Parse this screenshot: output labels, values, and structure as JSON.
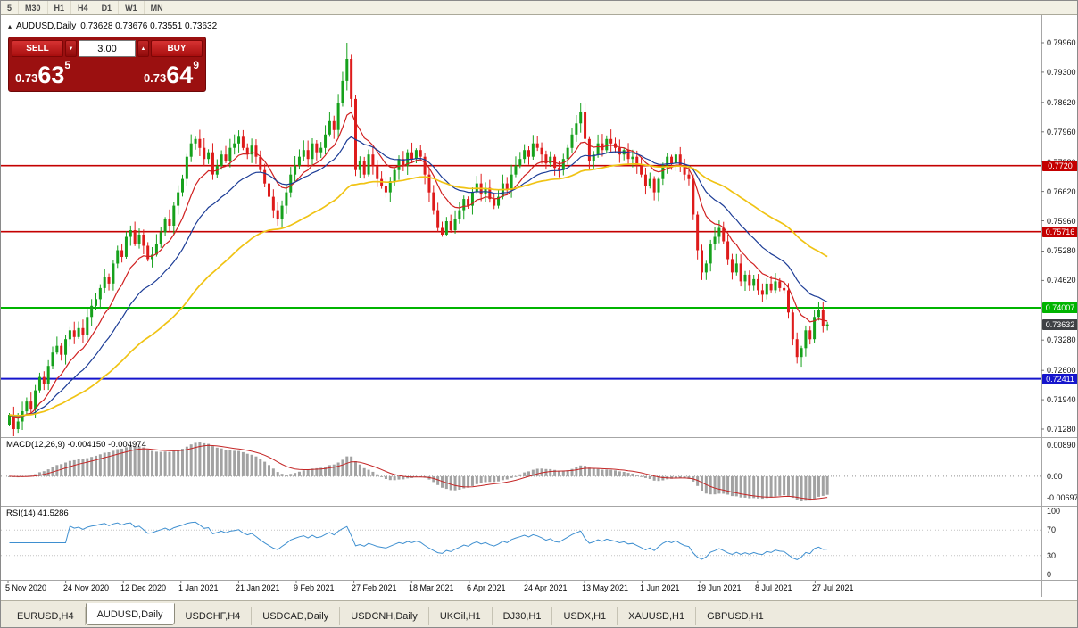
{
  "window": {
    "title": "AUDUSD,Daily"
  },
  "toolbar": {
    "buttons": [
      "5",
      "M30",
      "H1",
      "H4",
      "D1",
      "W1",
      "MN"
    ]
  },
  "chart_header": {
    "collapse_icon": "▴",
    "symbol": "AUDUSD,Daily",
    "ohlc": "0.73628 0.73676 0.73551 0.73632"
  },
  "trade_panel": {
    "sell_label": "SELL",
    "buy_label": "BUY",
    "volume": "3.00",
    "volume_down_icon": "▼",
    "volume_up_icon": "▲",
    "sell_price": {
      "prefix": "0.73",
      "big": "63",
      "sup": "5"
    },
    "buy_price": {
      "prefix": "0.73",
      "big": "64",
      "sup": "9"
    }
  },
  "price_scale": {
    "ticks": [
      "0.79960",
      "0.79300",
      "0.78620",
      "0.77960",
      "0.77280",
      "0.76620",
      "0.75960",
      "0.75280",
      "0.74620",
      "0.73960",
      "0.73280",
      "0.72600",
      "0.71940",
      "0.71280"
    ],
    "badges": [
      {
        "text": "0.7720",
        "price": 0.772,
        "color": "#C40000"
      },
      {
        "text": "0.75716",
        "price": 0.75716,
        "color": "#C40000"
      },
      {
        "text": "0.74007",
        "price": 0.74007,
        "color": "#00B400"
      },
      {
        "text": "0.73632",
        "price": 0.73632,
        "color": "#3F4145"
      },
      {
        "text": "0.72411",
        "price": 0.72411,
        "color": "#1515CC"
      }
    ]
  },
  "macd_panel": {
    "label": "MACD(12,26,9)",
    "values": "-0.004150 -0.004974",
    "scale_top": "0.00890",
    "scale_zero": "0.00",
    "scale_bottom": "-0.00697"
  },
  "rsi_panel": {
    "label": "RSI(14)",
    "value": "41.5286",
    "scale": [
      "100",
      "70",
      "30",
      "0"
    ],
    "scale_values": [
      100,
      70,
      30,
      0
    ]
  },
  "x_axis": {
    "dates": [
      "5 Nov 2020",
      "24 Nov 2020",
      "12 Dec 2020",
      "1 Jan 2021",
      "21 Jan 2021",
      "9 Feb 2021",
      "27 Feb 2021",
      "18 Mar 2021",
      "6 Apr 2021",
      "24 Apr 2021",
      "13 May 2021",
      "1 Jun 2021",
      "19 Jun 2021",
      "8 Jul 2021",
      "27 Jul 2021"
    ]
  },
  "tabs": [
    {
      "label": "EURUSD,H4",
      "active": false
    },
    {
      "label": "AUDUSD,Daily",
      "active": true
    },
    {
      "label": "USDCHF,H4",
      "active": false
    },
    {
      "label": "USDCAD,Daily",
      "active": false
    },
    {
      "label": "USDCNH,Daily",
      "active": false
    },
    {
      "label": "UKOil,H1",
      "active": false
    },
    {
      "label": "DJ30,H1",
      "active": false
    },
    {
      "label": "USDX,H1",
      "active": false
    },
    {
      "label": "XAUUSD,H1",
      "active": false
    },
    {
      "label": "GBPUSD,H1",
      "active": false
    }
  ],
  "chart_data": {
    "type": "candlestick",
    "symbol": "AUDUSD",
    "timeframe": "Daily",
    "ohlc_current": {
      "open": 0.73628,
      "high": 0.73676,
      "low": 0.73551,
      "close": 0.73632
    },
    "y_range": [
      0.711,
      0.8058
    ],
    "bid": 0.73632,
    "closes": [
      0.716,
      0.7128,
      0.7145,
      0.7168,
      0.719,
      0.7172,
      0.7215,
      0.7245,
      0.723,
      0.727,
      0.73,
      0.7315,
      0.7295,
      0.733,
      0.735,
      0.7335,
      0.7355,
      0.734,
      0.738,
      0.7405,
      0.742,
      0.7445,
      0.747,
      0.7455,
      0.75,
      0.753,
      0.7515,
      0.756,
      0.7575,
      0.7545,
      0.7565,
      0.754,
      0.751,
      0.752,
      0.7545,
      0.757,
      0.76,
      0.7585,
      0.763,
      0.766,
      0.769,
      0.774,
      0.777,
      0.778,
      0.776,
      0.7735,
      0.775,
      0.77,
      0.772,
      0.7745,
      0.773,
      0.776,
      0.777,
      0.7785,
      0.776,
      0.7745,
      0.7765,
      0.774,
      0.771,
      0.768,
      0.765,
      0.762,
      0.76,
      0.763,
      0.766,
      0.77,
      0.772,
      0.774,
      0.7755,
      0.7735,
      0.777,
      0.775,
      0.776,
      0.779,
      0.782,
      0.78,
      0.786,
      0.791,
      0.796,
      0.787,
      0.771,
      0.773,
      0.77,
      0.7745,
      0.772,
      0.769,
      0.7675,
      0.766,
      0.7685,
      0.771,
      0.7735,
      0.772,
      0.775,
      0.7735,
      0.7755,
      0.774,
      0.77,
      0.766,
      0.762,
      0.758,
      0.7565,
      0.7595,
      0.7575,
      0.76,
      0.762,
      0.7645,
      0.763,
      0.766,
      0.768,
      0.7655,
      0.767,
      0.7645,
      0.763,
      0.765,
      0.768,
      0.7665,
      0.77,
      0.772,
      0.7735,
      0.7755,
      0.774,
      0.777,
      0.776,
      0.7745,
      0.7725,
      0.774,
      0.7715,
      0.771,
      0.7735,
      0.776,
      0.779,
      0.7815,
      0.784,
      0.778,
      0.773,
      0.7745,
      0.777,
      0.7755,
      0.778,
      0.777,
      0.776,
      0.7745,
      0.7755,
      0.7735,
      0.774,
      0.772,
      0.77,
      0.7675,
      0.769,
      0.766,
      0.769,
      0.772,
      0.774,
      0.7725,
      0.7745,
      0.772,
      0.77,
      0.769,
      0.761,
      0.753,
      0.748,
      0.75,
      0.7545,
      0.756,
      0.758,
      0.755,
      0.751,
      0.748,
      0.75,
      0.746,
      0.7475,
      0.745,
      0.7465,
      0.744,
      0.743,
      0.7455,
      0.744,
      0.746,
      0.7445,
      0.744,
      0.739,
      0.733,
      0.729,
      0.731,
      0.735,
      0.733,
      0.738,
      0.7395,
      0.736,
      0.73632
    ],
    "spike": {
      "index": 78,
      "high": 0.7996
    },
    "hlines": [
      {
        "price": 0.772,
        "color": "#C40000",
        "width": 1.6
      },
      {
        "price": 0.75716,
        "color": "#C40000",
        "width": 1.6
      },
      {
        "price": 0.74007,
        "color": "#00B400",
        "width": 2
      },
      {
        "price": 0.72411,
        "color": "#1515CC",
        "width": 2
      }
    ],
    "moving_averages": [
      {
        "period": 10,
        "color": "#D02020"
      },
      {
        "period": 22,
        "color": "#1C3C96"
      },
      {
        "period": 55,
        "color": "#F0C314"
      }
    ],
    "macd": {
      "fast": 12,
      "slow": 26,
      "signal": 9,
      "current": -0.00415,
      "current_signal": -0.004974
    },
    "rsi": {
      "period": 14,
      "current": 41.5286
    }
  }
}
